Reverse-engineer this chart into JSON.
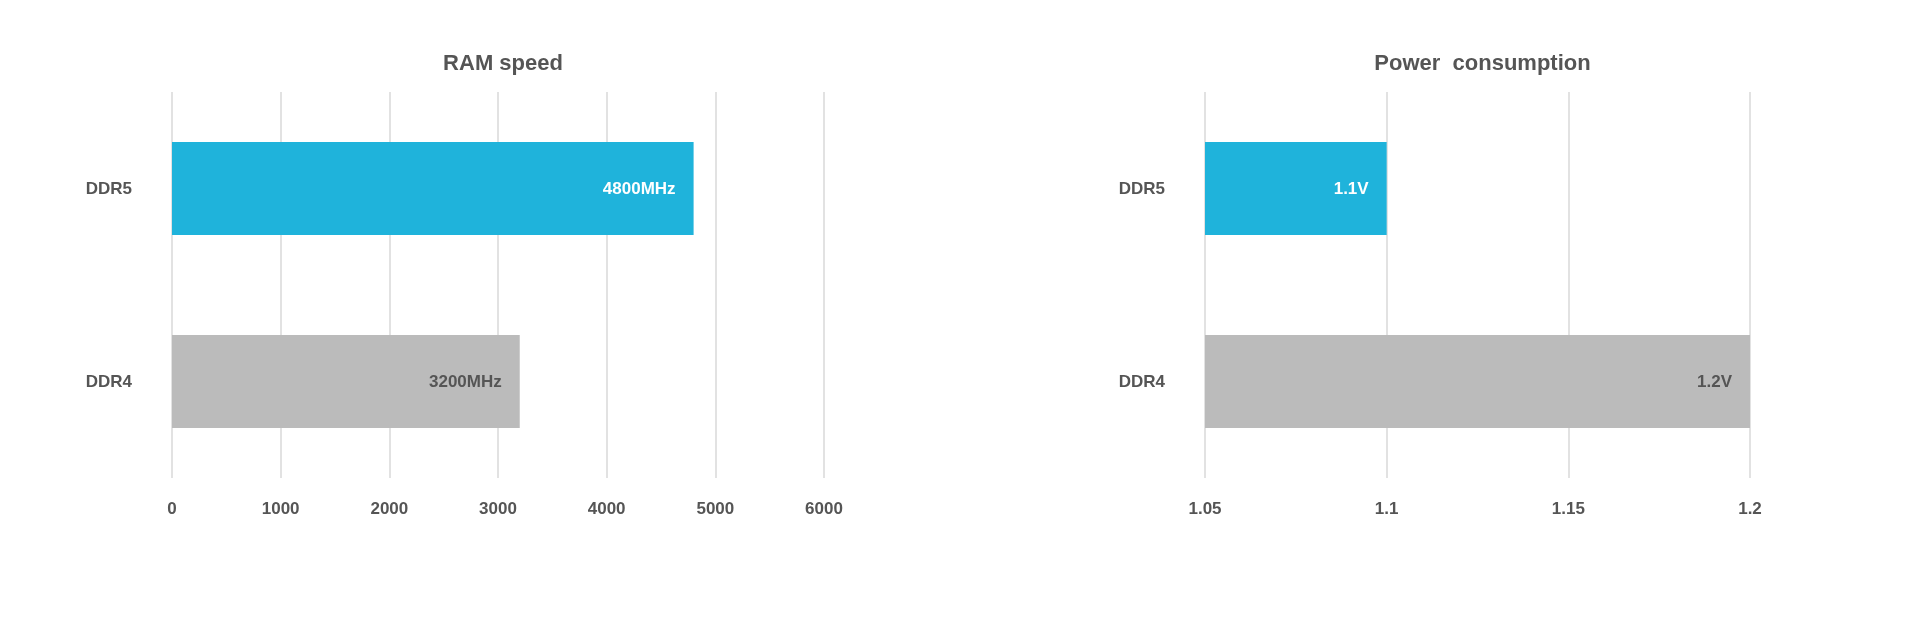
{
  "chart_data": [
    {
      "type": "bar",
      "orientation": "horizontal",
      "title": "RAM speed",
      "categories": [
        "DDR5",
        "DDR4"
      ],
      "values": [
        4800,
        3200
      ],
      "colors": [
        "#1fb3db",
        "#bbbbbb"
      ],
      "value_labels": [
        "4800MHz",
        "3200MHz"
      ],
      "xlim": [
        0,
        6000
      ],
      "xticks": [
        0,
        1000,
        2000,
        3000,
        4000,
        5000,
        6000
      ],
      "grid": "x"
    },
    {
      "type": "bar",
      "orientation": "horizontal",
      "title": "Power  consumption",
      "categories": [
        "DDR5",
        "DDR4"
      ],
      "values": [
        1.1,
        1.2
      ],
      "colors": [
        "#1fb3db",
        "#bbbbbb"
      ],
      "value_labels": [
        "1.1V",
        "1.2V"
      ],
      "xlim": [
        1.05,
        1.2
      ],
      "xticks": [
        1.05,
        1.1,
        1.15,
        1.2
      ],
      "grid": "x"
    }
  ]
}
